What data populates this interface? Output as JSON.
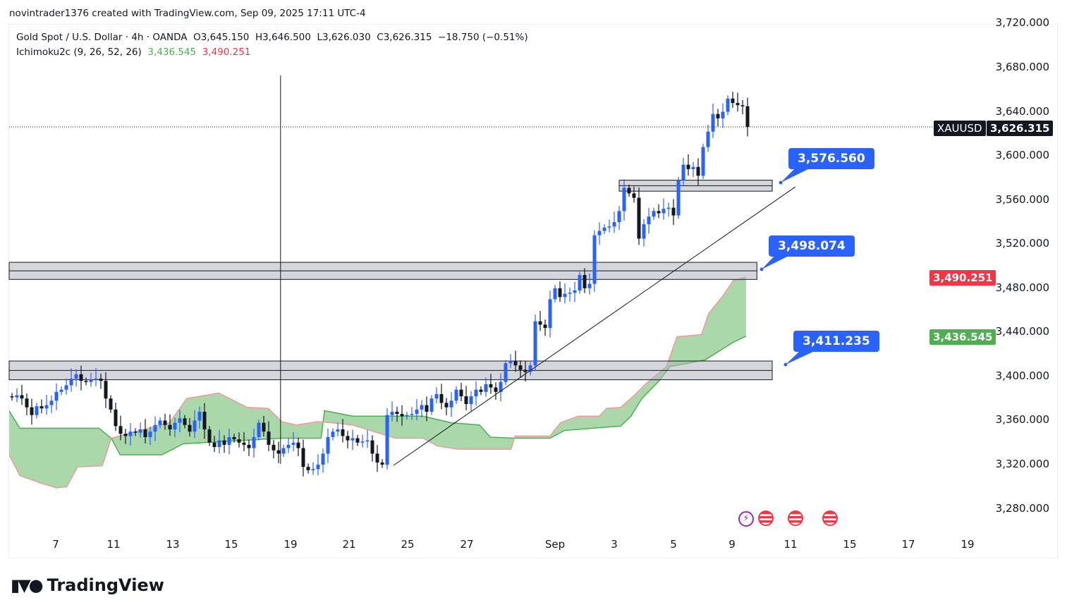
{
  "caption": "novintrader1376 created with TradingView.com, Sep 09, 2025 17:11 UTC-4",
  "legend": {
    "symbol_line": "Gold Spot / U.S. Dollar · 4h · OANDA",
    "open": "O3,645.150",
    "high": "H3,646.500",
    "low": "L3,626.030",
    "close": "C3,626.315",
    "change": "−18.750 (−0.51%)",
    "indicator": "Ichimoku2c (9, 26, 52, 26)",
    "ind_val1": "3,436.545",
    "ind_val2": "3,490.251"
  },
  "price_tags": {
    "symbol": "XAUUSD",
    "last": "3,626.315",
    "span_b": "3,490.251",
    "span_a": "3,436.545"
  },
  "callouts": [
    "3,576.560",
    "3,498.074",
    "3,411.235"
  ],
  "logo_text": "TradingView",
  "colors": {
    "up": "#2962ff",
    "down": "#131722",
    "cloud": "#a5d6a7",
    "span_a": "#4caf50",
    "span_b": "#ef9a9a",
    "tag_red": "#f23645",
    "tag_green": "#4caf50",
    "callout": "#2962ff"
  },
  "chart_data": {
    "type": "candlestick",
    "title": "Gold Spot / U.S. Dollar · 4h · OANDA",
    "ylim": [
      3260,
      3725
    ],
    "y_ticks": [
      "3,720.000",
      "3,680.000",
      "3,640.000",
      "3,600.000",
      "3,560.000",
      "3,520.000",
      "3,480.000",
      "3,440.000",
      "3,400.000",
      "3,360.000",
      "3,320.000",
      "3,280.000"
    ],
    "y_tick_values": [
      3720,
      3680,
      3640,
      3600,
      3560,
      3520,
      3480,
      3440,
      3400,
      3360,
      3320,
      3280
    ],
    "x_ticks": [
      "7",
      "11",
      "13",
      "15",
      "19",
      "21",
      "25",
      "27",
      "Sep",
      "3",
      "5",
      "9",
      "11",
      "15",
      "17",
      "19"
    ],
    "closes": [
      3381,
      3383,
      3380,
      3372,
      3365,
      3373,
      3371,
      3374,
      3378,
      3386,
      3388,
      3392,
      3398,
      3402,
      3396,
      3395,
      3397,
      3398,
      3396,
      3380,
      3370,
      3355,
      3348,
      3346,
      3350,
      3349,
      3352,
      3345,
      3350,
      3356,
      3360,
      3356,
      3352,
      3358,
      3362,
      3356,
      3350,
      3360,
      3368,
      3352,
      3340,
      3336,
      3342,
      3338,
      3345,
      3343,
      3340,
      3338,
      3335,
      3345,
      3358,
      3350,
      3338,
      3333,
      3330,
      3335,
      3338,
      3340,
      3335,
      3318,
      3315,
      3316,
      3320,
      3330,
      3345,
      3350,
      3352,
      3346,
      3342,
      3344,
      3340,
      3341,
      3342,
      3330,
      3322,
      3320,
      3365,
      3368,
      3366,
      3364,
      3365,
      3366,
      3370,
      3374,
      3368,
      3380,
      3384,
      3376,
      3372,
      3378,
      3388,
      3382,
      3375,
      3382,
      3388,
      3386,
      3393,
      3390,
      3386,
      3395,
      3412,
      3414,
      3410,
      3406,
      3404,
      3410,
      3450,
      3447,
      3444,
      3470,
      3480,
      3472,
      3475,
      3476,
      3478,
      3492,
      3480,
      3484,
      3528,
      3532,
      3535,
      3536,
      3540,
      3550,
      3571,
      3566,
      3562,
      3525,
      3538,
      3545,
      3550,
      3548,
      3552,
      3553,
      3546,
      3578,
      3592,
      3588,
      3590,
      3582,
      3608,
      3622,
      3638,
      3634,
      3640,
      3652,
      3648,
      3646,
      3645,
      3626.315
    ],
    "ichimoku": {
      "span_a": [
        [
          -0.6,
          3369
        ],
        [
          1.6,
          3353
        ],
        [
          17.6,
          3353
        ],
        [
          20.1,
          3344
        ],
        [
          21.9,
          3329
        ],
        [
          30.4,
          3329
        ],
        [
          34.7,
          3339
        ],
        [
          54.7,
          3344
        ],
        [
          62.6,
          3344
        ],
        [
          63.3,
          3369
        ],
        [
          69,
          3364
        ],
        [
          83.3,
          3364
        ],
        [
          89,
          3358
        ],
        [
          94.7,
          3356
        ],
        [
          96.9,
          3345
        ],
        [
          101.9,
          3344
        ],
        [
          109,
          3344
        ],
        [
          111.9,
          3351
        ],
        [
          123.3,
          3355
        ],
        [
          125.4,
          3364
        ],
        [
          127.6,
          3380
        ],
        [
          131.1,
          3396
        ],
        [
          133.3,
          3409
        ],
        [
          140.4,
          3415
        ],
        [
          146.1,
          3431
        ],
        [
          148.7,
          3436.545
        ]
      ],
      "span_b": [
        [
          -0.6,
          3329
        ],
        [
          1.6,
          3310
        ],
        [
          6.1,
          3303
        ],
        [
          9,
          3299
        ],
        [
          11.1,
          3300
        ],
        [
          13.3,
          3318
        ],
        [
          18.3,
          3319
        ],
        [
          20.1,
          3344
        ],
        [
          31.9,
          3358
        ],
        [
          35.4,
          3380
        ],
        [
          41.9,
          3385
        ],
        [
          47.6,
          3372
        ],
        [
          51.9,
          3371
        ],
        [
          54.7,
          3359
        ],
        [
          57.6,
          3356
        ],
        [
          61.9,
          3359
        ],
        [
          64.7,
          3358
        ],
        [
          69,
          3356
        ],
        [
          77.6,
          3344
        ],
        [
          83.3,
          3344
        ],
        [
          86.1,
          3337
        ],
        [
          90.4,
          3334
        ],
        [
          101.1,
          3334
        ],
        [
          101.9,
          3346
        ],
        [
          109,
          3346
        ],
        [
          111.1,
          3358
        ],
        [
          114.7,
          3364
        ],
        [
          119,
          3364
        ],
        [
          120.4,
          3371
        ],
        [
          123.3,
          3372
        ],
        [
          126.1,
          3383
        ],
        [
          128.3,
          3393
        ],
        [
          132.6,
          3409
        ],
        [
          134.7,
          3436
        ],
        [
          139.7,
          3438
        ],
        [
          141.1,
          3457
        ],
        [
          144,
          3473
        ],
        [
          146.1,
          3487
        ],
        [
          148.7,
          3490.251
        ]
      ]
    },
    "zones": [
      {
        "from_bar": 123,
        "to_bar": 154,
        "top": 3578,
        "bottom": 3568,
        "label": "3,576.560"
      },
      {
        "from_bar": -0.6,
        "to_bar": 150.9,
        "top": 3503.5,
        "bottom": 3488,
        "label": "3,498.074"
      },
      {
        "from_bar": -0.6,
        "to_bar": 154,
        "top": 3414,
        "bottom": 3397,
        "label": "3,411.235"
      }
    ],
    "trendline": [
      [
        77.3,
        3319.4
      ],
      [
        158.7,
        3572
      ]
    ],
    "vertical_line_bar": 54.4,
    "last_price": 3626.315
  }
}
